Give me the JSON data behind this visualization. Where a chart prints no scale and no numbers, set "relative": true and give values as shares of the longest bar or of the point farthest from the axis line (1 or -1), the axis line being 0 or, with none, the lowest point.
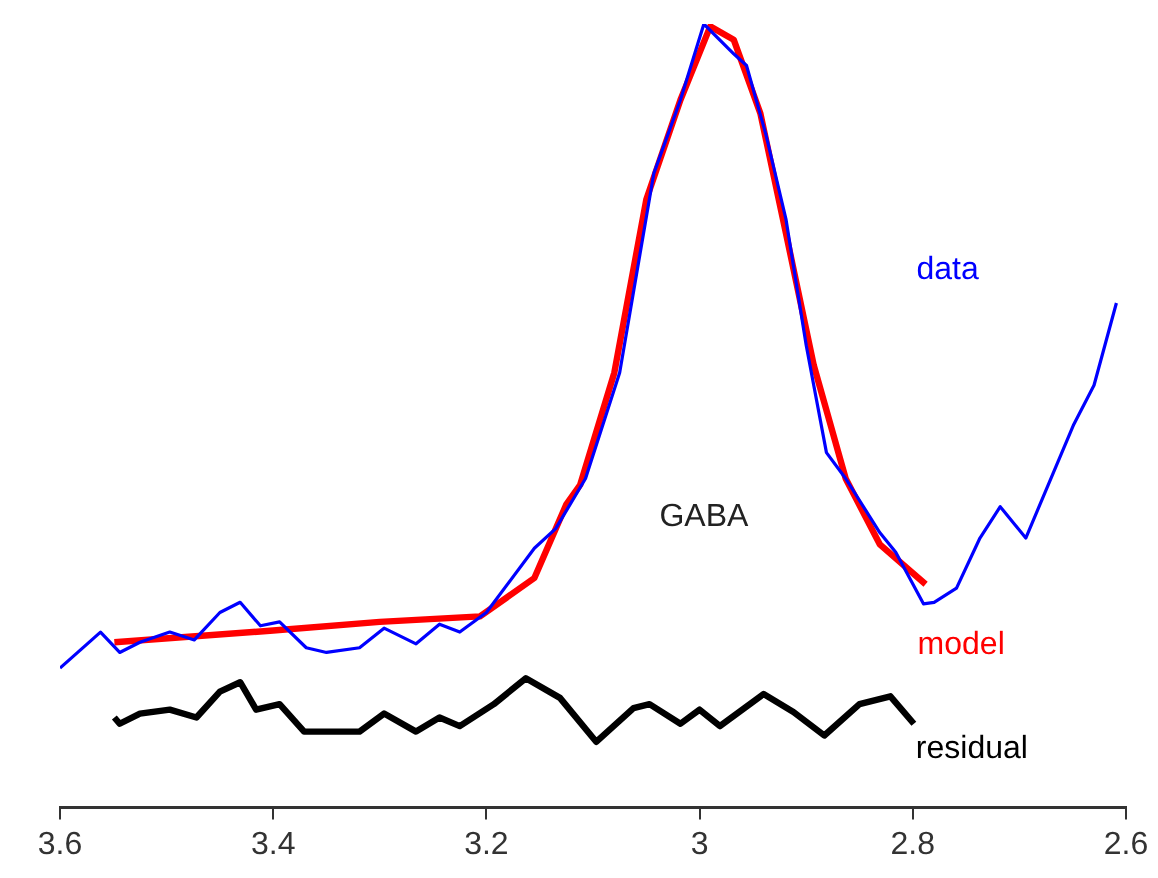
{
  "chart_data": {
    "type": "line",
    "relative": true,
    "xlim": [
      3.6,
      2.6
    ],
    "xticks": [
      3.6,
      3.4,
      3.2,
      3,
      2.8,
      2.6
    ],
    "grid": false,
    "legend": false,
    "annotations": [
      "GABA"
    ],
    "series": [
      {
        "name": "data",
        "color": "#0000ff",
        "x": [
          3.6,
          3.562,
          3.544,
          3.525,
          3.497,
          3.474,
          3.45,
          3.431,
          3.412,
          3.394,
          3.369,
          3.35,
          3.319,
          3.296,
          3.266,
          3.244,
          3.225,
          3.2,
          3.155,
          3.135,
          3.107,
          3.075,
          3.043,
          3.018,
          2.996,
          2.968,
          2.956,
          2.938,
          2.919,
          2.9,
          2.881,
          2.863,
          2.831,
          2.816,
          2.79,
          2.78,
          2.759,
          2.737,
          2.718,
          2.694,
          2.649,
          2.63,
          2.609
        ],
        "values": [
          0.178,
          0.224,
          0.198,
          0.211,
          0.224,
          0.214,
          0.249,
          0.262,
          0.232,
          0.237,
          0.204,
          0.198,
          0.204,
          0.229,
          0.209,
          0.234,
          0.224,
          0.249,
          0.331,
          0.356,
          0.42,
          0.555,
          0.809,
          0.903,
          1,
          0.962,
          0.947,
          0.86,
          0.751,
          0.59,
          0.453,
          0.42,
          0.351,
          0.326,
          0.26,
          0.262,
          0.28,
          0.344,
          0.384,
          0.344,
          0.489,
          0.539,
          0.644
        ]
      },
      {
        "name": "model",
        "color": "#ff0000",
        "x": [
          3.549,
          3.4,
          3.3,
          3.206,
          3.155,
          3.125,
          3.112,
          3.08,
          3.05,
          3.018,
          2.99,
          2.968,
          2.943,
          2.919,
          2.893,
          2.863,
          2.831,
          2.788
        ],
        "values": [
          0.211,
          0.226,
          0.237,
          0.244,
          0.293,
          0.387,
          0.412,
          0.555,
          0.776,
          0.903,
          0.997,
          0.98,
          0.886,
          0.733,
          0.565,
          0.42,
          0.336,
          0.285
        ]
      },
      {
        "name": "residual",
        "color": "#000000",
        "x": [
          3.549,
          3.544,
          3.525,
          3.497,
          3.472,
          3.45,
          3.431,
          3.416,
          3.394,
          3.371,
          3.343,
          3.319,
          3.296,
          3.266,
          3.244,
          3.225,
          3.193,
          3.163,
          3.131,
          3.097,
          3.062,
          3.047,
          3.018,
          3.0,
          2.981,
          2.94,
          2.912,
          2.883,
          2.85,
          2.821,
          2.799
        ],
        "values": [
          0.115,
          0.107,
          0.12,
          0.125,
          0.115,
          0.148,
          0.16,
          0.125,
          0.132,
          0.097,
          0.097,
          0.097,
          0.12,
          0.097,
          0.115,
          0.104,
          0.132,
          0.165,
          0.14,
          0.084,
          0.127,
          0.132,
          0.107,
          0.125,
          0.104,
          0.145,
          0.122,
          0.092,
          0.132,
          0.142,
          0.107
        ]
      }
    ]
  }
}
